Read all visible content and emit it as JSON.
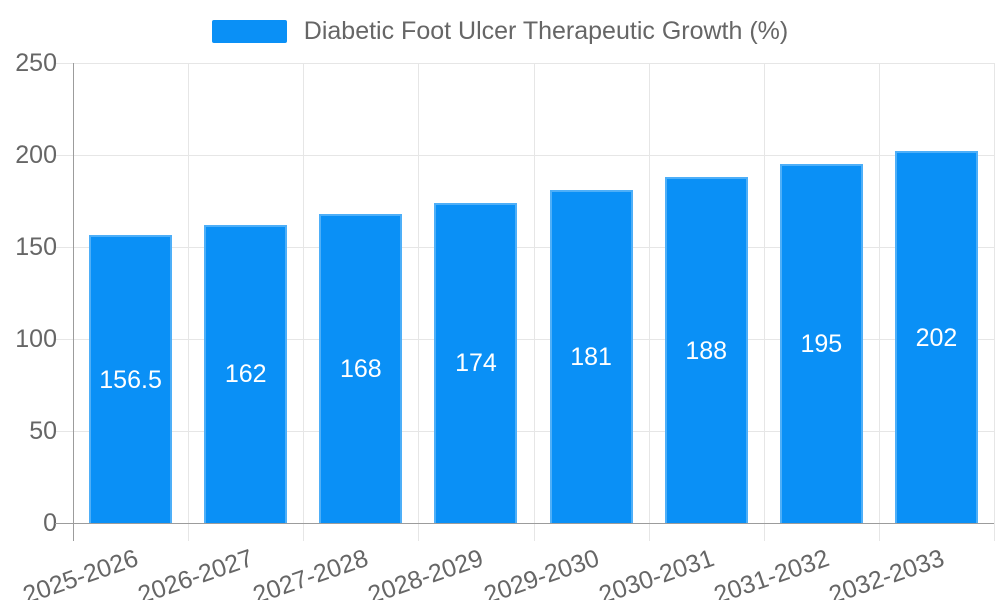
{
  "legend": {
    "label": "Diabetic Foot Ulcer Therapeutic Growth (%)"
  },
  "chart_data": {
    "type": "bar",
    "title": "Diabetic Foot Ulcer Therapeutic Growth (%)",
    "categories": [
      "2025-2026",
      "2026-2027",
      "2027-2028",
      "2028-2029",
      "2029-2030",
      "2030-2031",
      "2031-2032",
      "2032-2033"
    ],
    "values": [
      156.5,
      162,
      168,
      174,
      181,
      188,
      195,
      202
    ],
    "value_labels": [
      "156.5",
      "162",
      "168",
      "174",
      "181",
      "188",
      "195",
      "202"
    ],
    "xlabel": "",
    "ylabel": "",
    "ylim": [
      0,
      250
    ],
    "yticks": [
      0,
      50,
      100,
      150,
      200,
      250
    ],
    "grid": true,
    "legend_position": "top",
    "colors": {
      "bar": "#0a90f6",
      "gridline": "#e6e6e6",
      "axis_line": "#9c9c9c",
      "tick_text": "#666666",
      "bar_label_text": "#ffffff"
    }
  }
}
